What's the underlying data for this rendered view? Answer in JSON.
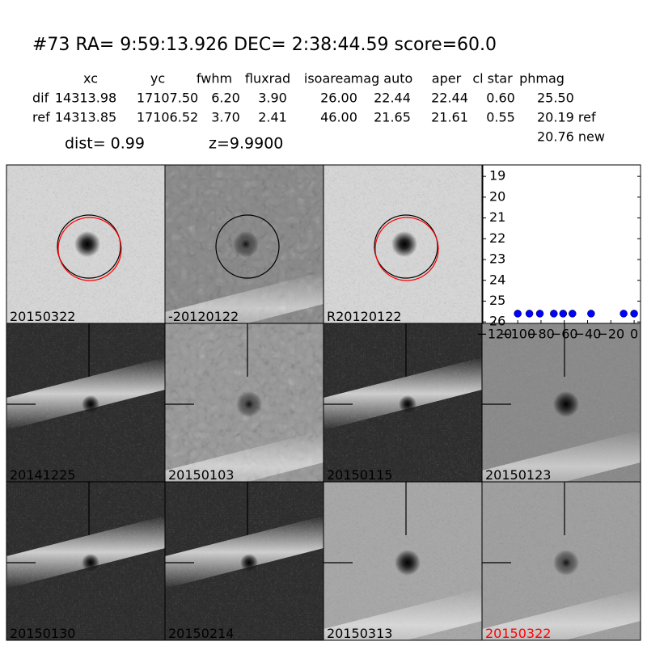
{
  "header": {
    "title": "#73   RA= 9:59:13.926 DEC= 2:38:44.59       score=60.0",
    "columns": [
      "xc",
      "yc",
      "fwhm",
      "fluxrad",
      "isoarea",
      "mag auto",
      "aper",
      "cl star",
      "phmag"
    ],
    "rows": [
      [
        "dif",
        "14313.98",
        "17107.50",
        "6.20",
        "3.90",
        "26.00",
        "22.44",
        "22.44",
        "0.60",
        "25.50"
      ],
      [
        "ref",
        "14313.85",
        "17106.52",
        "3.70",
        "2.41",
        "46.00",
        "21.65",
        "21.61",
        "0.55",
        "20.19 ref"
      ]
    ],
    "extra": "20.76 new",
    "dist": "dist=  0.99",
    "z": "z=9.9900"
  },
  "panels": [
    {
      "label": "20150322"
    },
    {
      "label": "-20120122"
    },
    {
      "label": "R20120122"
    },
    {
      "label": "20141225"
    },
    {
      "label": "20150103"
    },
    {
      "label": "20150115"
    },
    {
      "label": "20150123"
    },
    {
      "label": "20150130"
    },
    {
      "label": "20150214"
    },
    {
      "label": "20150313"
    },
    {
      "label": "20150322",
      "color": "#ff0000"
    }
  ],
  "chart_data": {
    "type": "scatter",
    "color": "#0000ff",
    "x": [
      -100,
      -90,
      -81,
      -69,
      -61,
      -53,
      -37,
      -9,
      0
    ],
    "y": [
      25.6,
      25.6,
      25.6,
      25.6,
      25.6,
      25.6,
      25.6,
      25.6,
      25.6
    ],
    "xlim": [
      -130,
      5.5
    ],
    "ylim": [
      18.45,
      26.07
    ],
    "y_inverted": true,
    "xticks": [
      {
        "value": -120,
        "label": "−120"
      },
      {
        "value": -100,
        "label": "−100"
      },
      {
        "value": -80,
        "label": "−80"
      },
      {
        "value": -60,
        "label": "−60"
      },
      {
        "value": -40,
        "label": "−40"
      },
      {
        "value": -20,
        "label": "−20"
      },
      0
    ],
    "yticks": [
      19,
      20,
      21,
      22,
      23,
      24,
      25,
      26
    ]
  }
}
